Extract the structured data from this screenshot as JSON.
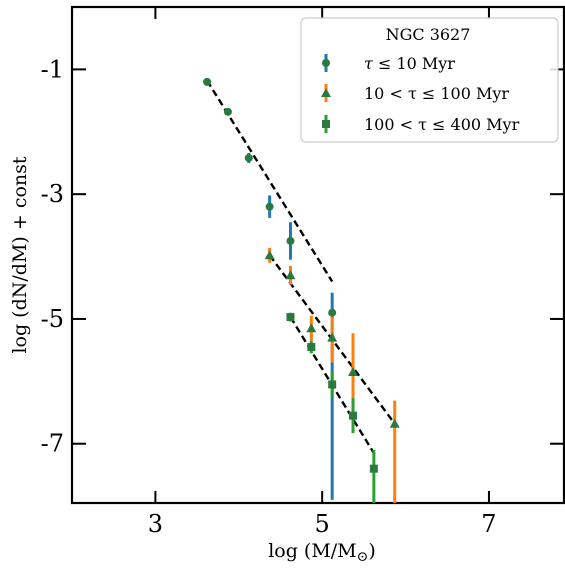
{
  "chart_data": {
    "type": "scatter",
    "title": "",
    "xlabel": "log (M/M",
    "xlabel_sub": "⊙",
    "xlabel_close": ")",
    "ylabel": "log (dN/dM) + const",
    "xlim": [
      2.0,
      7.9
    ],
    "ylim": [
      -7.95,
      0.0
    ],
    "xticks": [
      3,
      5,
      7
    ],
    "xtick_labels": [
      "3",
      "5",
      "7"
    ],
    "yticks": [
      -1,
      -3,
      -5,
      -7
    ],
    "ytick_labels": [
      "-1",
      "-3",
      "-5",
      "-7"
    ],
    "grid": false,
    "legend": {
      "placement": "top-right",
      "title": "NGC 3627",
      "entries": [
        {
          "prefix": "τ",
          "label": " ≤  10 Myr"
        },
        {
          "prefix": "",
          "label": "10 < τ ≤  100 Myr"
        },
        {
          "prefix": "",
          "label": "100 < τ ≤  400 Myr"
        }
      ]
    },
    "series": [
      {
        "name": "τ ≤ 10 Myr",
        "marker": "circle",
        "color": "#1f77b4",
        "marker_color": "#2a7a3e",
        "points": [
          {
            "x": 3.62,
            "y": -1.2,
            "err_lo": 0.04,
            "err_hi": 0.04
          },
          {
            "x": 3.87,
            "y": -1.68,
            "err_lo": 0.05,
            "err_hi": 0.05
          },
          {
            "x": 4.12,
            "y": -2.42,
            "err_lo": 0.08,
            "err_hi": 0.08
          },
          {
            "x": 4.37,
            "y": -3.2,
            "err_lo": 0.18,
            "err_hi": 0.18
          },
          {
            "x": 4.62,
            "y": -3.75,
            "err_lo": 0.3,
            "err_hi": 0.3
          },
          {
            "x": 5.12,
            "y": -4.9,
            "err_lo": 3.0,
            "err_hi": 0.32
          }
        ],
        "fit": {
          "x": [
            3.62,
            5.12
          ],
          "y": [
            -1.18,
            -4.4
          ]
        }
      },
      {
        "name": "10 < τ ≤ 100 Myr",
        "marker": "triangle",
        "color": "#ff7f0e",
        "marker_color": "#2a7a3e",
        "points": [
          {
            "x": 4.37,
            "y": -3.98,
            "err_lo": 0.12,
            "err_hi": 0.12
          },
          {
            "x": 4.62,
            "y": -4.3,
            "err_lo": 0.15,
            "err_hi": 0.15
          },
          {
            "x": 4.87,
            "y": -5.15,
            "err_lo": 0.2,
            "err_hi": 0.2
          },
          {
            "x": 5.12,
            "y": -5.3,
            "err_lo": 0.4,
            "err_hi": 0.4
          },
          {
            "x": 5.37,
            "y": -5.85,
            "err_lo": 0.62,
            "err_hi": 0.62
          },
          {
            "x": 5.87,
            "y": -6.68,
            "err_lo": 1.4,
            "err_hi": 0.37
          }
        ],
        "fit": {
          "x": [
            4.37,
            5.87
          ],
          "y": [
            -3.98,
            -6.68
          ]
        }
      },
      {
        "name": "100 < τ ≤ 400 Myr",
        "marker": "square",
        "color": "#2ca02c",
        "marker_color": "#2a7a3e",
        "points": [
          {
            "x": 4.62,
            "y": -4.97,
            "err_lo": 0.07,
            "err_hi": 0.07
          },
          {
            "x": 4.87,
            "y": -5.45,
            "err_lo": 0.1,
            "err_hi": 0.1
          },
          {
            "x": 5.12,
            "y": -6.05,
            "err_lo": 0.2,
            "err_hi": 0.2
          },
          {
            "x": 5.37,
            "y": -6.55,
            "err_lo": 0.28,
            "err_hi": 0.28
          },
          {
            "x": 5.62,
            "y": -7.4,
            "err_lo": 0.6,
            "err_hi": 0.3
          }
        ],
        "fit": {
          "x": [
            4.62,
            5.62
          ],
          "y": [
            -4.97,
            -7.15
          ]
        }
      }
    ]
  },
  "colors": {
    "series_1": "#1f77b4",
    "series_2": "#ff7f0e",
    "series_3": "#2ca02c",
    "marker": "#2a7a3e",
    "fit_line": "#000000",
    "legend_border": "#cccccc"
  }
}
